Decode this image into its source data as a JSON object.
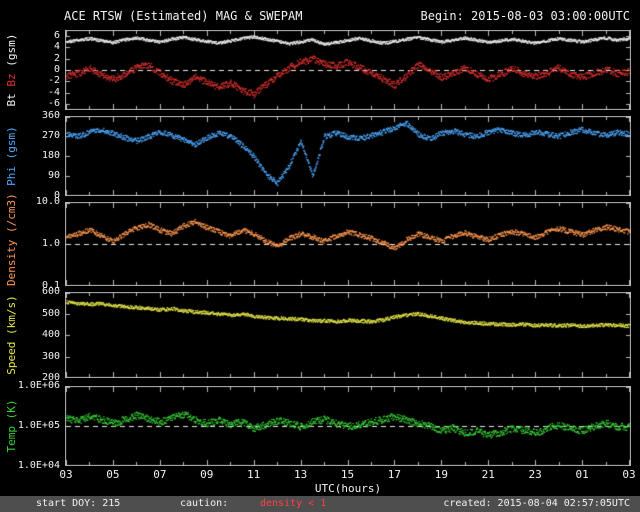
{
  "header": {
    "title": "ACE RTSW (Estimated) MAG & SWEPAM",
    "begin_label": "Begin: 2015-08-03 03:00:00UTC"
  },
  "x_axis": {
    "label": "UTC(hours)",
    "tick_labels": [
      "03",
      "05",
      "07",
      "09",
      "11",
      "13",
      "15",
      "17",
      "19",
      "21",
      "23",
      "01",
      "03"
    ],
    "start_hour": 3,
    "end_hour": 27
  },
  "footer": {
    "start_doy": "start DOY: 215",
    "caution_label": "caution:",
    "caution_value": "density < 1",
    "created": "created: 2015-08-04 02:57:05UTC"
  },
  "colors": {
    "background": "#000000",
    "text": "#f2f2f2",
    "frame": "#b8b8b8",
    "dashed": "#e8e8e8",
    "footer_bar": "#4e4e4e",
    "caution": "#ff4242",
    "bt": "#f0f0f0",
    "bz": "#dd3030",
    "phi": "#4fa8ff",
    "density": "#ff9850",
    "speed": "#e6e64a",
    "temp": "#38d038"
  },
  "chart_data": [
    {
      "type": "scatter",
      "name": "mag",
      "ylabel_parts": [
        {
          "text": "Bt ",
          "color": "#f0f0f0"
        },
        {
          "text": "Bz ",
          "color": "#dd3030"
        },
        {
          "text": "(gsm)",
          "color": "#f0f0f0"
        }
      ],
      "ylim": [
        -7,
        7
      ],
      "log": false,
      "yticks": [
        {
          "v": 6,
          "label": "6"
        },
        {
          "v": 4,
          "label": "4"
        },
        {
          "v": 2,
          "label": "2"
        },
        {
          "v": 0,
          "label": "0"
        },
        {
          "v": -2,
          "label": "-2"
        },
        {
          "v": -4,
          "label": "-4"
        },
        {
          "v": -6,
          "label": "-6"
        }
      ],
      "dashed_y": 0,
      "x_start_hour": 3,
      "x_step_hours": 0.5,
      "series": [
        {
          "name": "Bt",
          "color": "#f0f0f0",
          "jitter": 0.25,
          "values": [
            5.0,
            5.3,
            5.6,
            5.2,
            4.9,
            5.4,
            5.7,
            5.3,
            5.0,
            5.5,
            5.8,
            5.4,
            5.1,
            4.8,
            5.2,
            5.6,
            5.9,
            5.5,
            5.1,
            4.7,
            5.0,
            5.4,
            4.6,
            4.9,
            5.3,
            5.6,
            5.2,
            4.8,
            5.1,
            5.5,
            5.8,
            5.4,
            5.0,
            5.3,
            5.7,
            5.3,
            4.9,
            5.2,
            5.5,
            5.1,
            4.8,
            5.2,
            5.6,
            5.3,
            5.0,
            5.4,
            5.7,
            5.3,
            5.6
          ]
        },
        {
          "name": "Bz",
          "color": "#dd3030",
          "jitter": 0.6,
          "values": [
            -1.0,
            -0.5,
            0.3,
            -0.8,
            -1.5,
            -0.7,
            0.5,
            1.0,
            -0.5,
            -1.8,
            -2.5,
            -1.2,
            -2.0,
            -3.0,
            -2.2,
            -3.5,
            -4.2,
            -2.5,
            -1.0,
            0.5,
            1.5,
            2.0,
            1.2,
            0.8,
            1.5,
            0.5,
            -0.5,
            -1.5,
            -2.5,
            -1.0,
            1.0,
            0.0,
            -1.2,
            -0.5,
            0.5,
            -0.8,
            -1.5,
            -0.7,
            0.3,
            -0.5,
            -1.0,
            -0.3,
            0.5,
            -0.6,
            -1.2,
            -0.4,
            0.2,
            -0.5,
            -0.2
          ]
        }
      ]
    },
    {
      "type": "scatter",
      "name": "phi",
      "ylabel_parts": [
        {
          "text": "Phi (gsm)",
          "color": "#4fa8ff"
        }
      ],
      "ylim": [
        0,
        360
      ],
      "log": false,
      "yticks": [
        {
          "v": 360,
          "label": "360"
        },
        {
          "v": 270,
          "label": "270"
        },
        {
          "v": 180,
          "label": "180"
        },
        {
          "v": 90,
          "label": "90"
        },
        {
          "v": 0,
          "label": "0"
        }
      ],
      "dashed_y": null,
      "x_start_hour": 3,
      "x_step_hours": 0.5,
      "series": [
        {
          "name": "Phi",
          "color": "#4fa8ff",
          "jitter": 12,
          "values": [
            280,
            270,
            290,
            300,
            285,
            265,
            250,
            270,
            290,
            275,
            255,
            235,
            265,
            285,
            270,
            230,
            180,
            100,
            60,
            140,
            250,
            90,
            270,
            285,
            270,
            260,
            275,
            290,
            310,
            330,
            280,
            260,
            285,
            295,
            280,
            270,
            290,
            300,
            285,
            275,
            290,
            280,
            270,
            290,
            300,
            285,
            275,
            290,
            280
          ]
        }
      ]
    },
    {
      "type": "scatter",
      "name": "density",
      "ylabel_parts": [
        {
          "text": "Density (/cm3)",
          "color": "#ff9850"
        }
      ],
      "ylim": [
        0.1,
        10
      ],
      "log": true,
      "yticks": [
        {
          "v": 10,
          "label": "10.0"
        },
        {
          "v": 1,
          "label": "1.0"
        },
        {
          "v": 0.1,
          "label": "0.1"
        }
      ],
      "dashed_y": 1,
      "x_start_hour": 3,
      "x_step_hours": 0.5,
      "series": [
        {
          "name": "Density",
          "color": "#ff9850",
          "jitter": 0.06,
          "values": [
            1.5,
            1.8,
            2.2,
            1.6,
            1.2,
            1.8,
            2.5,
            3.0,
            2.2,
            1.8,
            2.8,
            3.5,
            2.5,
            2.0,
            1.6,
            2.2,
            1.8,
            1.2,
            0.9,
            1.4,
            1.8,
            1.5,
            1.2,
            1.6,
            2.0,
            1.7,
            1.4,
            1.1,
            0.8,
            1.3,
            1.8,
            1.5,
            1.2,
            1.6,
            1.9,
            1.5,
            1.3,
            1.7,
            2.0,
            1.8,
            1.5,
            2.0,
            2.4,
            2.0,
            1.7,
            2.2,
            2.6,
            2.3,
            2.0
          ]
        }
      ]
    },
    {
      "type": "scatter",
      "name": "speed",
      "ylabel_parts": [
        {
          "text": "Speed (km/s)",
          "color": "#e6e64a"
        }
      ],
      "ylim": [
        200,
        600
      ],
      "log": false,
      "yticks": [
        {
          "v": 600,
          "label": "600"
        },
        {
          "v": 500,
          "label": "500"
        },
        {
          "v": 400,
          "label": "400"
        },
        {
          "v": 300,
          "label": "300"
        },
        {
          "v": 200,
          "label": "200"
        }
      ],
      "dashed_y": null,
      "x_start_hour": 3,
      "x_step_hours": 0.5,
      "series": [
        {
          "name": "Speed",
          "color": "#e6e64a",
          "jitter": 8,
          "values": [
            555,
            550,
            545,
            548,
            540,
            535,
            530,
            525,
            520,
            525,
            515,
            510,
            505,
            500,
            495,
            500,
            490,
            485,
            480,
            478,
            475,
            470,
            468,
            465,
            470,
            468,
            465,
            472,
            488,
            495,
            500,
            490,
            480,
            470,
            462,
            458,
            455,
            452,
            450,
            452,
            448,
            450,
            446,
            448,
            444,
            446,
            450,
            447,
            445
          ]
        }
      ]
    },
    {
      "type": "scatter",
      "name": "temp",
      "ylabel_parts": [
        {
          "text": "Temp (K)",
          "color": "#38d038"
        }
      ],
      "ylim": [
        10000,
        1000000
      ],
      "log": true,
      "yticks": [
        {
          "v": 1000000,
          "label": "1.0E+06"
        },
        {
          "v": 100000,
          "label": "1.0E+05"
        },
        {
          "v": 10000,
          "label": "1.0E+04"
        }
      ],
      "dashed_y": 100000,
      "x_start_hour": 3,
      "x_step_hours": 0.5,
      "series": [
        {
          "name": "Temp",
          "color": "#38d038",
          "jitter": 0.09,
          "values": [
            160000,
            140000,
            180000,
            150000,
            120000,
            150000,
            190000,
            160000,
            130000,
            170000,
            200000,
            150000,
            120000,
            140000,
            110000,
            130000,
            90000,
            110000,
            140000,
            120000,
            100000,
            130000,
            150000,
            120000,
            100000,
            110000,
            130000,
            150000,
            180000,
            140000,
            120000,
            100000,
            80000,
            90000,
            70000,
            80000,
            60000,
            70000,
            90000,
            80000,
            70000,
            90000,
            110000,
            90000,
            80000,
            100000,
            120000,
            100000,
            95000
          ]
        }
      ]
    }
  ]
}
